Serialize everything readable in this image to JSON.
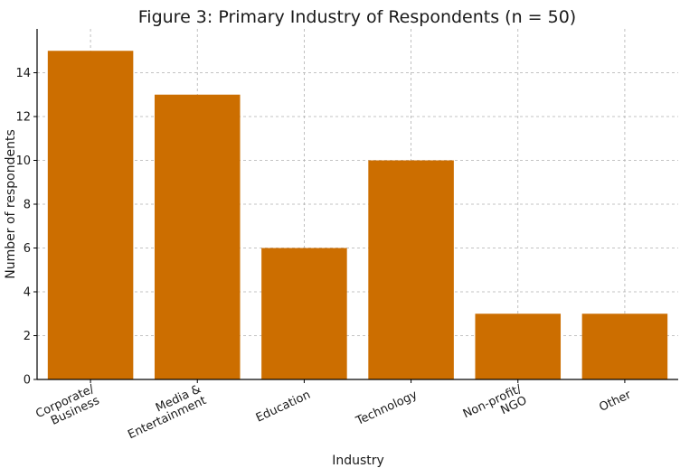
{
  "chart_data": {
    "type": "bar",
    "title": "Figure 3: Primary Industry of Respondents (n = 50)",
    "xlabel": "Industry",
    "ylabel": "Number of respondents",
    "categories": [
      [
        "Corporate/",
        "Business"
      ],
      [
        "Media &",
        "Entertainment"
      ],
      [
        "Education"
      ],
      [
        "Technology"
      ],
      [
        "Non-profit/",
        "NGO"
      ],
      [
        "Other"
      ]
    ],
    "values": [
      15,
      13,
      6,
      10,
      3,
      3
    ],
    "ylim": [
      0,
      16
    ],
    "yticks": [
      0,
      2,
      4,
      6,
      8,
      10,
      12,
      14
    ],
    "grid": true,
    "bar_color": "#cc6e00",
    "legend": false
  }
}
